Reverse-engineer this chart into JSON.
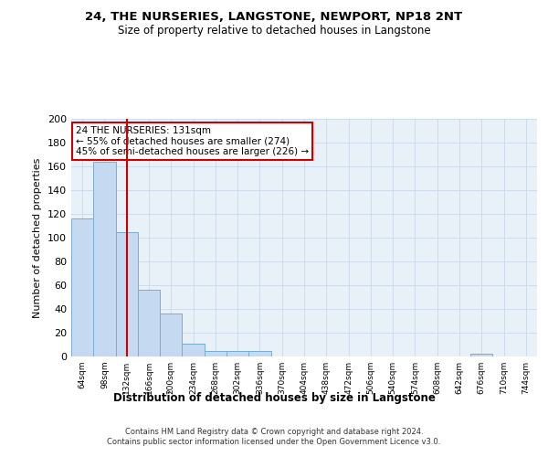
{
  "title": "24, THE NURSERIES, LANGSTONE, NEWPORT, NP18 2NT",
  "subtitle": "Size of property relative to detached houses in Langstone",
  "xlabel": "Distribution of detached houses by size in Langstone",
  "ylabel": "Number of detached properties",
  "bar_color": "#c5d9f0",
  "bar_edge_color": "#7aadd4",
  "grid_color": "#c8d8e8",
  "background_color": "#e8f0f8",
  "vline_color": "#cc0000",
  "vline_x": 2,
  "annotation_text": "24 THE NURSERIES: 131sqm\n← 55% of detached houses are smaller (274)\n45% of semi-detached houses are larger (226) →",
  "annotation_box_color": "#ffffff",
  "annotation_box_edge": "#cc0000",
  "categories": [
    "64sqm",
    "98sqm",
    "132sqm",
    "166sqm",
    "200sqm",
    "234sqm",
    "268sqm",
    "302sqm",
    "336sqm",
    "370sqm",
    "404sqm",
    "438sqm",
    "472sqm",
    "506sqm",
    "540sqm",
    "574sqm",
    "608sqm",
    "642sqm",
    "676sqm",
    "710sqm",
    "744sqm"
  ],
  "values": [
    116,
    164,
    105,
    56,
    36,
    11,
    5,
    5,
    5,
    0,
    0,
    0,
    0,
    0,
    0,
    0,
    0,
    0,
    2,
    0,
    0
  ],
  "ylim": [
    0,
    200
  ],
  "yticks": [
    0,
    20,
    40,
    60,
    80,
    100,
    120,
    140,
    160,
    180,
    200
  ],
  "footer": "Contains HM Land Registry data © Crown copyright and database right 2024.\nContains public sector information licensed under the Open Government Licence v3.0.",
  "figsize": [
    6.0,
    5.0
  ],
  "dpi": 100
}
